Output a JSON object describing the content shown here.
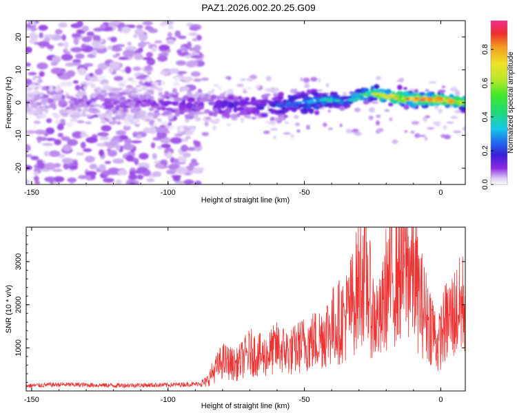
{
  "title": "PAZ1.2026.002.20.25.G09",
  "chart_data": [
    {
      "type": "heatmap",
      "title": "PAZ1.2026.002.20.25.G09",
      "xlabel": "Height of straight line (km)",
      "ylabel": "Frequency (Hz)",
      "xlim": [
        -152,
        9
      ],
      "ylim": [
        -25,
        25
      ],
      "xticks": [
        -150,
        -100,
        -50,
        0
      ],
      "yticks": [
        -20,
        -10,
        0,
        10,
        20
      ],
      "colorbar": {
        "label": "Normalized spectral amplitude",
        "range": [
          0,
          0.97
        ],
        "ticks": [
          0.0,
          0.2,
          0.4,
          0.6,
          0.8
        ]
      },
      "ridge": {
        "x": [
          -150,
          -130,
          -110,
          -90,
          -80,
          -70,
          -60,
          -50,
          -40,
          -35,
          -30,
          -25,
          -20,
          -10,
          0,
          8
        ],
        "frequency": [
          0,
          0,
          0,
          -1,
          -1,
          -1,
          -1,
          0,
          1,
          0,
          2,
          3,
          2,
          1,
          1,
          0
        ],
        "amplitude": [
          0.08,
          0.1,
          0.12,
          0.15,
          0.18,
          0.2,
          0.25,
          0.3,
          0.45,
          0.35,
          0.5,
          0.7,
          0.8,
          0.95,
          0.9,
          0.85
        ]
      }
    },
    {
      "type": "line",
      "xlabel": "Height of straight line (km)",
      "ylabel": "SNR (10 * v/v)",
      "xlim": [
        -152,
        9
      ],
      "ylim": [
        0,
        3800
      ],
      "xticks": [
        -150,
        -100,
        -50,
        0
      ],
      "yticks": [
        1000,
        2000,
        3000
      ],
      "color": "#ee3333",
      "series": [
        {
          "name": "SNR",
          "x": [
            -152,
            -140,
            -120,
            -100,
            -90,
            -86,
            -84,
            -80,
            -75,
            -70,
            -65,
            -60,
            -55,
            -50,
            -45,
            -40,
            -35,
            -32,
            -30,
            -28,
            -25,
            -22,
            -20,
            -15,
            -12,
            -10,
            -8,
            -5,
            -3,
            -1,
            0,
            2,
            5,
            8,
            9
          ],
          "values": [
            120,
            150,
            130,
            140,
            160,
            200,
            400,
            700,
            600,
            900,
            800,
            1000,
            900,
            1100,
            1200,
            1500,
            1700,
            2100,
            2500,
            2900,
            1800,
            1600,
            2400,
            2800,
            2900,
            2700,
            2200,
            1700,
            1500,
            1000,
            1300,
            1600,
            1800,
            2000,
            2100
          ]
        }
      ]
    }
  ]
}
